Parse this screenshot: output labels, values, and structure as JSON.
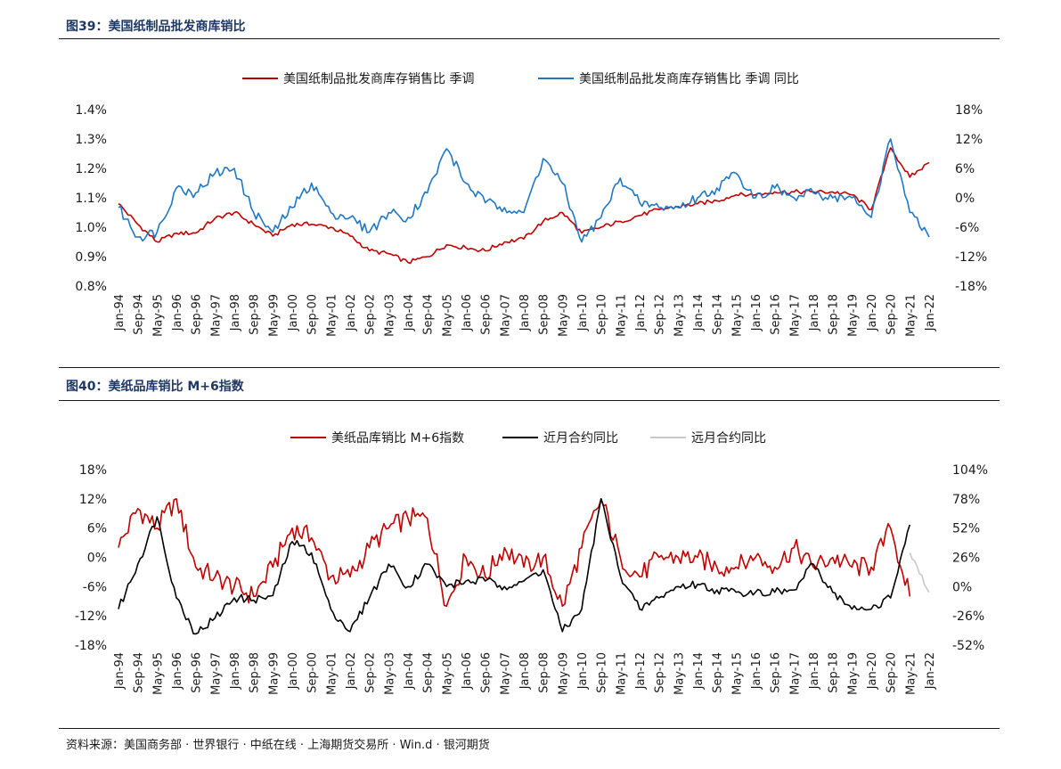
{
  "colors": {
    "red": "#c00000",
    "blue": "#1f77c4",
    "black": "#000000",
    "gray": "#c8c8c8",
    "title": "#1f3864"
  },
  "figure1": {
    "title": "图39：美国纸制品批发商库销比"
  },
  "figure2": {
    "title": "图40：美纸品库销比 M+6指数"
  },
  "source": "资料来源：美国商务部 · 世界银行 · 中纸在线 · 上海期货交易所 · Win.d · 银河期货",
  "chart_data": [
    {
      "type": "line",
      "title": "图39：美国纸制品批发商库销比",
      "legend_position": "top-center",
      "categories": [
        "Jan-94",
        "Sep-94",
        "May-95",
        "Jan-96",
        "Sep-96",
        "May-97",
        "Jan-98",
        "Sep-98",
        "May-99",
        "Jan-00",
        "Sep-00",
        "May-01",
        "Jan-02",
        "Sep-02",
        "May-03",
        "Jan-04",
        "Sep-04",
        "May-05",
        "Jan-06",
        "Sep-06",
        "May-07",
        "Jan-08",
        "Sep-08",
        "May-09",
        "Jan-10",
        "Sep-10",
        "May-11",
        "Jan-12",
        "Sep-12",
        "May-13",
        "Jan-14",
        "Sep-14",
        "May-15",
        "Jan-16",
        "Sep-16",
        "May-17",
        "Jan-18",
        "Sep-18",
        "May-19",
        "Jan-20",
        "Sep-20",
        "May-21",
        "Jan-22"
      ],
      "left_axis": {
        "ylim": [
          0.8,
          1.4
        ],
        "ticks": [
          "0.8%",
          "0.9%",
          "1.0%",
          "1.1%",
          "1.2%",
          "1.3%",
          "1.4%"
        ]
      },
      "right_axis": {
        "ylim": [
          -18,
          18
        ],
        "ticks": [
          "-18%",
          "-12%",
          "-6%",
          "0%",
          "6%",
          "12%",
          "18%"
        ]
      },
      "series": [
        {
          "name": "美国纸制品批发商库存销售比 季调",
          "axis": "left",
          "color": "#c00000",
          "values": [
            1.08,
            1.01,
            0.95,
            0.98,
            0.98,
            1.03,
            1.05,
            1.01,
            0.97,
            1.01,
            1.01,
            1.0,
            0.97,
            0.92,
            0.91,
            0.88,
            0.9,
            0.94,
            0.93,
            0.92,
            0.95,
            0.96,
            1.02,
            1.05,
            0.98,
            1.0,
            1.02,
            1.04,
            1.06,
            1.07,
            1.08,
            1.09,
            1.11,
            1.11,
            1.12,
            1.12,
            1.12,
            1.12,
            1.11,
            1.06,
            1.27,
            1.17,
            1.22
          ]
        },
        {
          "name": "美国纸制品批发商库存销售比 季调 同比",
          "axis": "right",
          "color": "#1f77c4",
          "values": [
            -2,
            -8,
            -7,
            2,
            1,
            5,
            6,
            -3,
            -7,
            -2,
            3,
            -3,
            -4,
            -7,
            -3,
            -4,
            1,
            10,
            3,
            -1,
            -2,
            -3,
            8,
            3,
            -9,
            -4,
            4,
            -1,
            -2,
            -2,
            0,
            2,
            5,
            0,
            2,
            0,
            1,
            0,
            0,
            -4,
            12,
            -3,
            -8
          ]
        }
      ]
    },
    {
      "type": "line",
      "title": "图40：美纸品库销比 M+6指数",
      "legend_position": "top-center",
      "categories": [
        "Jan-94",
        "Sep-94",
        "May-95",
        "Jan-96",
        "Sep-96",
        "May-97",
        "Jan-98",
        "Sep-98",
        "May-99",
        "Jan-00",
        "Sep-00",
        "May-01",
        "Jan-02",
        "Sep-02",
        "May-03",
        "Jan-04",
        "Sep-04",
        "May-05",
        "Jan-06",
        "Sep-06",
        "May-07",
        "Jan-08",
        "Sep-08",
        "May-09",
        "Jan-10",
        "Sep-10",
        "May-11",
        "Jan-12",
        "Sep-12",
        "May-13",
        "Jan-14",
        "Sep-14",
        "May-15",
        "Jan-16",
        "Sep-16",
        "May-17",
        "Jan-18",
        "Sep-18",
        "May-19",
        "Jan-20",
        "Sep-20",
        "May-21",
        "Jan-22"
      ],
      "left_axis": {
        "ylim": [
          -18,
          18
        ],
        "ticks": [
          "-18%",
          "-12%",
          "-6%",
          "0%",
          "6%",
          "12%",
          "18%"
        ]
      },
      "right_axis": {
        "ylim": [
          -52,
          104
        ],
        "ticks": [
          "-52%",
          "-26%",
          "0%",
          "26%",
          "52%",
          "78%",
          "104%"
        ]
      },
      "series": [
        {
          "name": "美纸品库销比 M+6指数",
          "axis": "left",
          "color": "#c00000",
          "values": [
            2,
            10,
            6,
            12,
            -2,
            -4,
            -6,
            -8,
            -2,
            6,
            4,
            -4,
            -4,
            2,
            6,
            8,
            8,
            -10,
            0,
            -4,
            2,
            -2,
            0,
            -10,
            2,
            12,
            0,
            -4,
            0,
            0,
            0,
            -2,
            -2,
            0,
            -2,
            2,
            -2,
            0,
            -2,
            -2,
            6,
            -8,
            null
          ]
        },
        {
          "name": "近月合约同比",
          "axis": "right",
          "color": "#000000",
          "values": [
            -20,
            20,
            62,
            -10,
            -42,
            -28,
            -10,
            -12,
            -8,
            40,
            30,
            -20,
            -40,
            -10,
            20,
            0,
            20,
            0,
            5,
            5,
            0,
            5,
            15,
            -40,
            -20,
            78,
            10,
            -20,
            -10,
            0,
            2,
            -3,
            -5,
            -5,
            -5,
            -3,
            20,
            -5,
            -20,
            -20,
            -10,
            55,
            null
          ]
        },
        {
          "name": "远月合约同比",
          "axis": "right",
          "color": "#c8c8c8",
          "values": [
            null,
            null,
            null,
            null,
            null,
            null,
            null,
            null,
            null,
            null,
            null,
            null,
            null,
            null,
            null,
            null,
            null,
            null,
            null,
            null,
            null,
            null,
            null,
            null,
            null,
            null,
            null,
            null,
            null,
            null,
            null,
            null,
            null,
            null,
            null,
            null,
            null,
            null,
            null,
            null,
            null,
            30,
            -5
          ]
        }
      ]
    }
  ]
}
